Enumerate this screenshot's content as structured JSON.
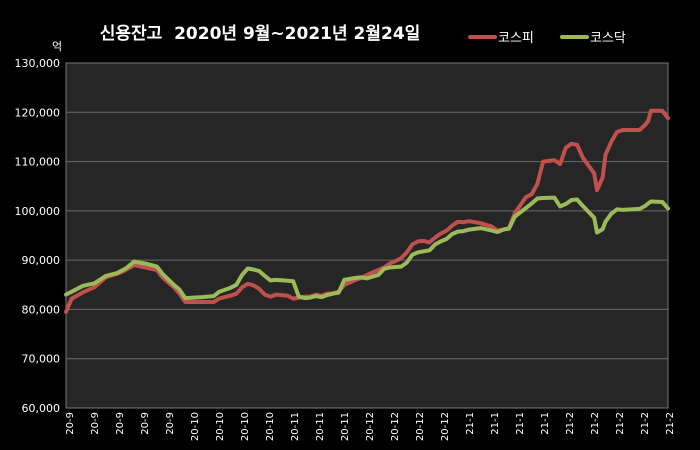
{
  "chart_data": {
    "type": "line",
    "title": "신용잔고  2020년 9월~2021년 2월24일",
    "ylabel": "억",
    "ylim": [
      60000,
      130000
    ],
    "y_ticks": [
      "60,000",
      "70,000",
      "80,000",
      "90,000",
      "100,000",
      "110,000",
      "120,000",
      "130,000"
    ],
    "y_tick_values": [
      60000,
      70000,
      80000,
      90000,
      100000,
      110000,
      120000,
      130000
    ],
    "x_tick_labels": [
      "20-9",
      "20-9",
      "20-9",
      "20-9",
      "20-9",
      "20-10",
      "20-10",
      "20-10",
      "20-10",
      "20-11",
      "20-11",
      "20-11",
      "20-12",
      "20-12",
      "20-12",
      "20-12",
      "21-1",
      "21-1",
      "21-1",
      "21-1",
      "21-2",
      "21-2",
      "21-2",
      "21-2",
      "21-2"
    ],
    "grid": true,
    "legend_position": "top-right",
    "x_points": 200,
    "series": [
      {
        "name": "코스피",
        "color": "#c0504d",
        "points": [
          [
            0,
            79500
          ],
          [
            2,
            82200
          ],
          [
            6,
            83500
          ],
          [
            10,
            84500
          ],
          [
            14,
            86500
          ],
          [
            18,
            87200
          ],
          [
            21,
            88000
          ],
          [
            24,
            89000
          ],
          [
            28,
            88500
          ],
          [
            32,
            88000
          ],
          [
            34,
            86500
          ],
          [
            38,
            84500
          ],
          [
            40,
            83200
          ],
          [
            42,
            81500
          ],
          [
            48,
            81500
          ],
          [
            52,
            81500
          ],
          [
            54,
            82200
          ],
          [
            58,
            82800
          ],
          [
            60,
            83200
          ],
          [
            62,
            84500
          ],
          [
            64,
            85200
          ],
          [
            66,
            84900
          ],
          [
            68,
            84200
          ],
          [
            70,
            83000
          ],
          [
            72,
            82600
          ],
          [
            74,
            83000
          ],
          [
            78,
            82800
          ],
          [
            80,
            82200
          ],
          [
            82,
            82400
          ],
          [
            84,
            82600
          ],
          [
            86,
            82600
          ],
          [
            88,
            83000
          ],
          [
            90,
            82800
          ],
          [
            92,
            83200
          ],
          [
            94,
            83300
          ],
          [
            96,
            83600
          ],
          [
            98,
            85000
          ],
          [
            102,
            86000
          ],
          [
            104,
            86400
          ],
          [
            106,
            87000
          ],
          [
            110,
            88000
          ],
          [
            112,
            88500
          ],
          [
            114,
            89300
          ],
          [
            116,
            89800
          ],
          [
            118,
            90400
          ],
          [
            120,
            91600
          ],
          [
            122,
            93200
          ],
          [
            124,
            93800
          ],
          [
            126,
            93900
          ],
          [
            128,
            93600
          ],
          [
            130,
            94600
          ],
          [
            132,
            95400
          ],
          [
            134,
            96000
          ],
          [
            136,
            97000
          ],
          [
            138,
            97800
          ],
          [
            140,
            97700
          ],
          [
            142,
            97900
          ],
          [
            146,
            97500
          ],
          [
            150,
            96800
          ],
          [
            152,
            96000
          ],
          [
            154,
            96200
          ],
          [
            156,
            96500
          ],
          [
            158,
            99500
          ],
          [
            162,
            102800
          ],
          [
            164,
            103400
          ],
          [
            166,
            105500
          ],
          [
            168,
            110000
          ],
          [
            172,
            110300
          ],
          [
            174,
            109500
          ],
          [
            176,
            112800
          ],
          [
            178,
            113600
          ],
          [
            180,
            113400
          ],
          [
            182,
            110800
          ],
          [
            186,
            107600
          ],
          [
            187,
            104200
          ],
          [
            189,
            106800
          ],
          [
            190,
            111400
          ],
          [
            192,
            114000
          ],
          [
            194,
            116000
          ],
          [
            196,
            116400
          ],
          [
            202,
            116400
          ],
          [
            204,
            117500
          ],
          [
            205,
            118200
          ],
          [
            206,
            120300
          ],
          [
            210,
            120300
          ],
          [
            212,
            118800
          ]
        ]
      },
      {
        "name": "코스닥",
        "color": "#9bbb59",
        "points": [
          [
            0,
            83000
          ],
          [
            2,
            83600
          ],
          [
            6,
            84800
          ],
          [
            10,
            85300
          ],
          [
            14,
            86800
          ],
          [
            18,
            87400
          ],
          [
            21,
            88300
          ],
          [
            24,
            89700
          ],
          [
            28,
            89300
          ],
          [
            32,
            88700
          ],
          [
            34,
            87200
          ],
          [
            38,
            85000
          ],
          [
            40,
            84000
          ],
          [
            42,
            82300
          ],
          [
            48,
            82500
          ],
          [
            52,
            82700
          ],
          [
            54,
            83600
          ],
          [
            58,
            84400
          ],
          [
            60,
            85000
          ],
          [
            62,
            87000
          ],
          [
            64,
            88300
          ],
          [
            66,
            88100
          ],
          [
            68,
            87800
          ],
          [
            70,
            86800
          ],
          [
            72,
            85900
          ],
          [
            74,
            86000
          ],
          [
            78,
            85800
          ],
          [
            80,
            85700
          ],
          [
            82,
            82600
          ],
          [
            84,
            82300
          ],
          [
            86,
            82400
          ],
          [
            88,
            82700
          ],
          [
            90,
            82500
          ],
          [
            92,
            82900
          ],
          [
            94,
            83200
          ],
          [
            96,
            83400
          ],
          [
            98,
            86000
          ],
          [
            102,
            86400
          ],
          [
            104,
            86500
          ],
          [
            106,
            86300
          ],
          [
            110,
            87000
          ],
          [
            112,
            88200
          ],
          [
            114,
            88500
          ],
          [
            116,
            88600
          ],
          [
            118,
            88700
          ],
          [
            120,
            89500
          ],
          [
            122,
            91100
          ],
          [
            124,
            91600
          ],
          [
            126,
            91800
          ],
          [
            128,
            92000
          ],
          [
            130,
            93200
          ],
          [
            132,
            93800
          ],
          [
            134,
            94300
          ],
          [
            136,
            95300
          ],
          [
            138,
            95800
          ],
          [
            140,
            95900
          ],
          [
            142,
            96200
          ],
          [
            146,
            96500
          ],
          [
            150,
            96000
          ],
          [
            152,
            95700
          ],
          [
            154,
            96200
          ],
          [
            156,
            96400
          ],
          [
            158,
            98800
          ],
          [
            162,
            100600
          ],
          [
            164,
            101500
          ],
          [
            166,
            102500
          ],
          [
            168,
            102600
          ],
          [
            172,
            102700
          ],
          [
            174,
            100900
          ],
          [
            176,
            101400
          ],
          [
            178,
            102200
          ],
          [
            180,
            102300
          ],
          [
            182,
            101000
          ],
          [
            186,
            98600
          ],
          [
            187,
            95600
          ],
          [
            189,
            96300
          ],
          [
            190,
            97800
          ],
          [
            192,
            99400
          ],
          [
            194,
            100300
          ],
          [
            196,
            100200
          ],
          [
            202,
            100400
          ],
          [
            204,
            101000
          ],
          [
            205,
            101500
          ],
          [
            206,
            101900
          ],
          [
            210,
            101800
          ],
          [
            212,
            100500
          ]
        ]
      }
    ]
  }
}
